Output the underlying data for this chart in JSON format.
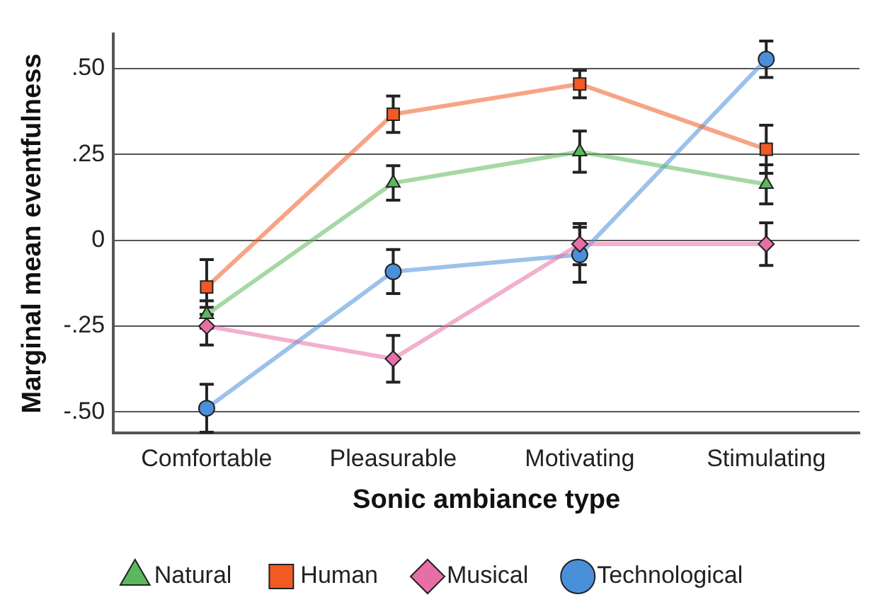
{
  "chart_data": {
    "type": "line",
    "xlabel": "Sonic ambiance type",
    "ylabel": "Marginal mean eventfulness",
    "categories": [
      "Comfortable",
      "Pleasurable",
      "Motivating",
      "Stimulating"
    ],
    "series": [
      {
        "name": "Natural",
        "color": "#5cb85c",
        "marker": "triangle",
        "values": [
          -0.216,
          0.167,
          0.258,
          0.163
        ],
        "errors": [
          0.04,
          0.05,
          0.06,
          0.057
        ]
      },
      {
        "name": "Human",
        "color": "#f15a22",
        "marker": "square",
        "values": [
          -0.136,
          0.367,
          0.455,
          0.265
        ],
        "errors": [
          0.08,
          0.053,
          0.04,
          0.07
        ]
      },
      {
        "name": "Musical",
        "color": "#e66fa6",
        "marker": "diamond",
        "values": [
          -0.25,
          -0.345,
          -0.011,
          -0.011
        ],
        "errors": [
          0.055,
          0.068,
          0.06,
          0.062
        ]
      },
      {
        "name": "Technological",
        "color": "#4a90d9",
        "marker": "circle",
        "values": [
          -0.489,
          -0.091,
          -0.042,
          0.527
        ],
        "errors": [
          0.07,
          0.064,
          0.08,
          0.053
        ]
      }
    ],
    "ylim": [
      -0.56,
      0.6
    ],
    "yticks": [
      {
        "value": -0.5,
        "label": "-.50"
      },
      {
        "value": -0.25,
        "label": "-.25"
      },
      0,
      {
        "value": 0.25,
        "label": ".25"
      },
      {
        "value": 0.5,
        "label": ".50"
      }
    ],
    "grid": "y",
    "legend": "bottom",
    "line_style": "solid"
  }
}
